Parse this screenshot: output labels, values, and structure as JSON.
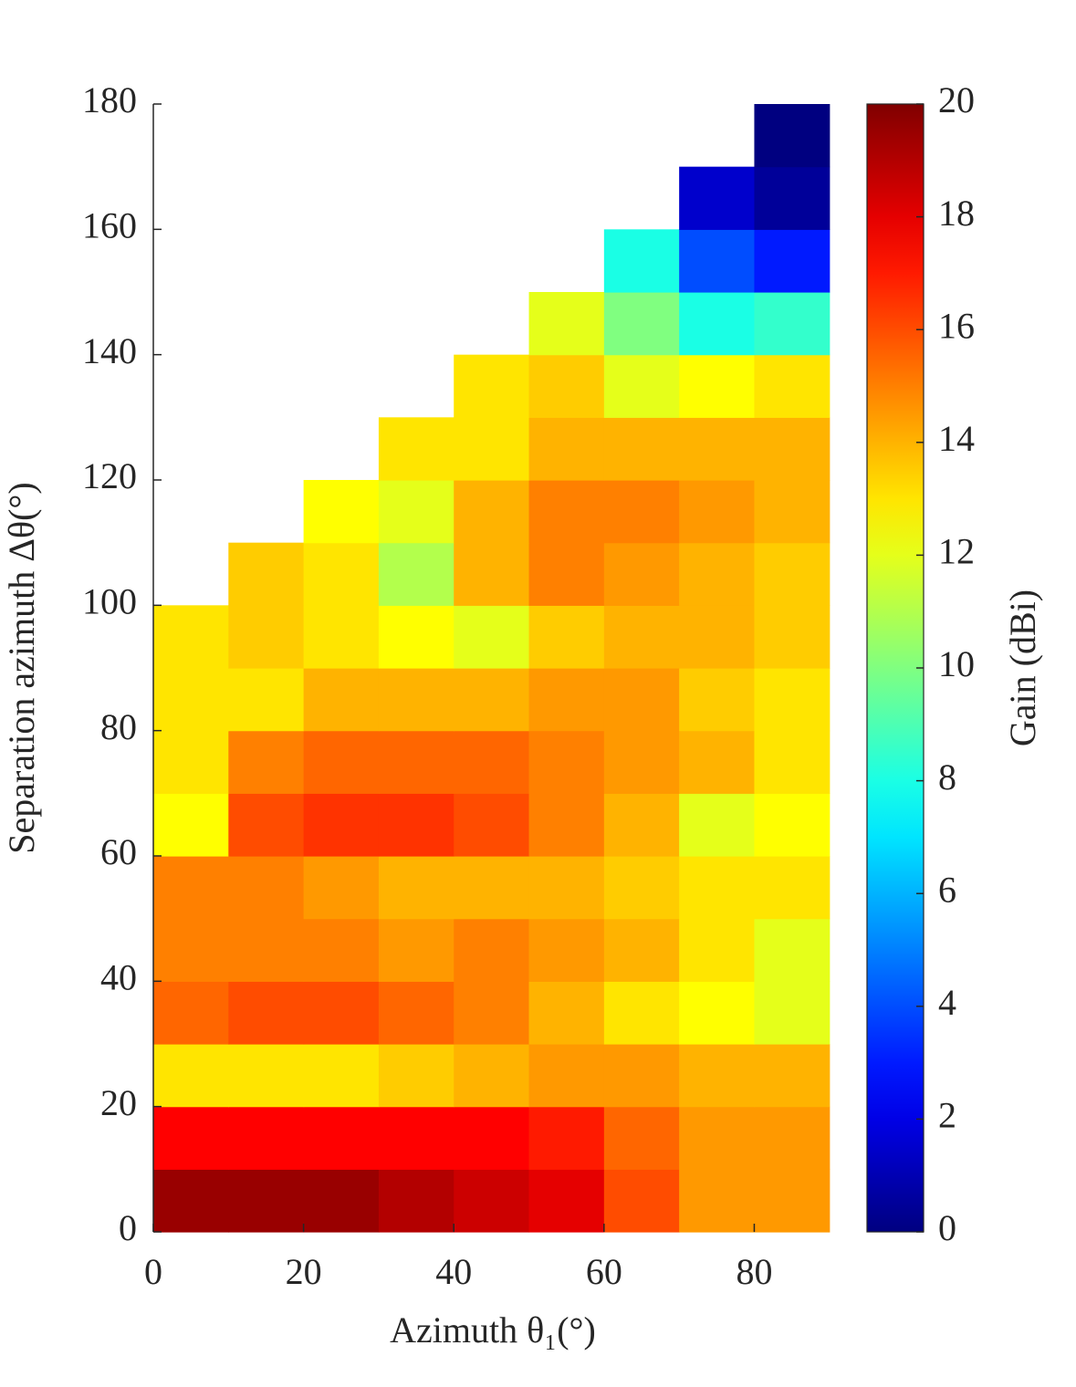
{
  "chart_data": {
    "type": "heatmap",
    "x_label": "Azimuth θ₁(°)",
    "y_label": "Separation azimuth Δθ(°)",
    "colorbar_label": "Gain (dBi)",
    "colormap": "jet",
    "x_bins": [
      0,
      10,
      20,
      30,
      40,
      50,
      60,
      70,
      80,
      90
    ],
    "y_bins": [
      0,
      10,
      20,
      30,
      40,
      50,
      60,
      70,
      80,
      90,
      100,
      110,
      120,
      130,
      140,
      150,
      160,
      170,
      180
    ],
    "z": [
      [
        19.5,
        19.5,
        19.5,
        19,
        18.5,
        18,
        16,
        14.5,
        14.5
      ],
      [
        17.5,
        17.5,
        17.5,
        17.5,
        17.5,
        17,
        15.5,
        14.5,
        14.5
      ],
      [
        13,
        13,
        13,
        13.5,
        14,
        14.5,
        14.5,
        14,
        14
      ],
      [
        15.5,
        16,
        16,
        15.5,
        15,
        14,
        13,
        12.5,
        12
      ],
      [
        15,
        15,
        15,
        14.5,
        15,
        14.5,
        14,
        13,
        12
      ],
      [
        15,
        15,
        14.5,
        14,
        14,
        14,
        13.5,
        13,
        13
      ],
      [
        12.5,
        16,
        16.5,
        16.5,
        16,
        15,
        14,
        12,
        12.5
      ],
      [
        13,
        15,
        15.5,
        15.5,
        15.5,
        15,
        14.5,
        14,
        13
      ],
      [
        13,
        13,
        14,
        14,
        14,
        14.5,
        14.5,
        13.5,
        13
      ],
      [
        13,
        13.5,
        13,
        12.5,
        12,
        13.5,
        14,
        14,
        13.5
      ],
      [
        null,
        13.5,
        13,
        11,
        14,
        15,
        14.5,
        14,
        13.5
      ],
      [
        null,
        null,
        12.5,
        12,
        14,
        15,
        15,
        14.5,
        14
      ],
      [
        null,
        null,
        null,
        13,
        13,
        14,
        14,
        14,
        14
      ],
      [
        null,
        null,
        null,
        null,
        13,
        13.5,
        12,
        12.5,
        13
      ],
      [
        null,
        null,
        null,
        null,
        null,
        12,
        10,
        8,
        8.5
      ],
      [
        null,
        null,
        null,
        null,
        null,
        null,
        8,
        4,
        3
      ],
      [
        null,
        null,
        null,
        null,
        null,
        null,
        null,
        1.5,
        0.5
      ],
      [
        null,
        null,
        null,
        null,
        null,
        null,
        null,
        null,
        0
      ]
    ],
    "xlim": [
      0,
      91
    ],
    "xticks": [
      0,
      20,
      40,
      60,
      80
    ],
    "ylim": [
      0,
      180
    ],
    "yticks": [
      0,
      20,
      40,
      60,
      80,
      100,
      120,
      140,
      160,
      180
    ],
    "zlim": [
      0,
      20
    ],
    "zticks": [
      0,
      2,
      4,
      6,
      8,
      10,
      12,
      14,
      16,
      18,
      20
    ]
  }
}
